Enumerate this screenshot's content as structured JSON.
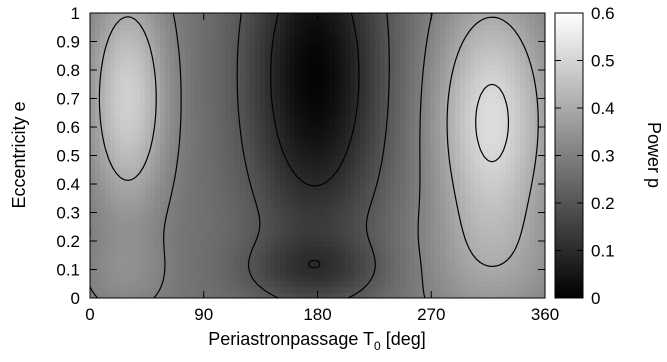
{
  "chart_data": {
    "type": "heatmap",
    "xlabel_main": "Periastronpassage T",
    "xlabel_sub": "0",
    "xlabel_suffix": " [deg]",
    "ylabel": "Eccentricity e",
    "colorbar_label": "Power p",
    "xlim": [
      0,
      360
    ],
    "ylim": [
      0,
      1
    ],
    "zlim": [
      0,
      0.6
    ],
    "x_ticks": [
      0,
      90,
      180,
      270,
      360
    ],
    "y_ticks": [
      0,
      0.1,
      0.2,
      0.3,
      0.4,
      0.5,
      0.6,
      0.7,
      0.8,
      0.9,
      1
    ],
    "colorbar_ticks": [
      0,
      0.1,
      0.2,
      0.3,
      0.4,
      0.5,
      0.6
    ],
    "colormap": "grayscale (black = 0, white = 0.6)",
    "contour_levels": [
      0.1,
      0.2,
      0.3,
      0.4,
      0.5
    ],
    "grid": false,
    "legend": "colorbar right",
    "power_samples": [
      {
        "T0": 0,
        "e": 0.0,
        "p": 0.27
      },
      {
        "T0": 0,
        "e": 0.5,
        "p": 0.36
      },
      {
        "T0": 0,
        "e": 0.9,
        "p": 0.33
      },
      {
        "T0": 30,
        "e": 0.1,
        "p": 0.31
      },
      {
        "T0": 30,
        "e": 0.5,
        "p": 0.49
      },
      {
        "T0": 30,
        "e": 0.8,
        "p": 0.54
      },
      {
        "T0": 90,
        "e": 0.3,
        "p": 0.25
      },
      {
        "T0": 90,
        "e": 0.7,
        "p": 0.26
      },
      {
        "T0": 140,
        "e": 0.5,
        "p": 0.12
      },
      {
        "T0": 175,
        "e": 0.1,
        "p": 0.2
      },
      {
        "T0": 175,
        "e": 0.5,
        "p": 0.08
      },
      {
        "T0": 175,
        "e": 0.95,
        "p": 0.02
      },
      {
        "T0": 225,
        "e": 0.5,
        "p": 0.15
      },
      {
        "T0": 270,
        "e": 0.5,
        "p": 0.36
      },
      {
        "T0": 315,
        "e": 0.3,
        "p": 0.45
      },
      {
        "T0": 315,
        "e": 0.6,
        "p": 0.53
      },
      {
        "T0": 315,
        "e": 0.85,
        "p": 0.55
      },
      {
        "T0": 360,
        "e": 0.0,
        "p": 0.27
      },
      {
        "T0": 360,
        "e": 0.5,
        "p": 0.36
      }
    ]
  }
}
